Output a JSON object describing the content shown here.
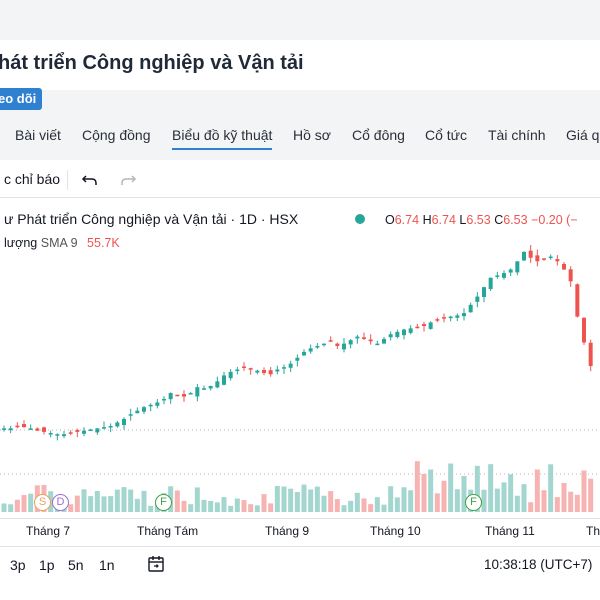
{
  "header": {
    "title": "hát triển Công nghiệp và Vận tải",
    "follow_label": "eo dõi"
  },
  "tabs": [
    {
      "label": "Bài viết"
    },
    {
      "label": "Cộng đồng"
    },
    {
      "label": "Biểu đồ kỹ thuật",
      "active": true
    },
    {
      "label": "Hồ sơ"
    },
    {
      "label": "Cổ đông"
    },
    {
      "label": "Cổ tức"
    },
    {
      "label": "Tài chính"
    },
    {
      "label": "Giá q"
    }
  ],
  "toolbar": {
    "indicators_label": "c chỉ báo",
    "icons": [
      "undo-icon",
      "redo-icon"
    ]
  },
  "legend": {
    "symbol_title": "ư Phát triển Công nghiệp và Vận tải · 1D · HSX",
    "ohlc": {
      "o_label": "O",
      "o": "6.74",
      "h_label": "H",
      "h": "6.74",
      "l_label": "L",
      "l": "6.53",
      "c_label": "C",
      "c": "6.53",
      "change": "−0.20 (−"
    },
    "volume_label": "lượng",
    "sma_label": "SMA 9",
    "volume_value": "55.7K"
  },
  "events": [
    {
      "label": "S",
      "color": "#e6a05c"
    },
    {
      "label": "D",
      "color": "#a06cd5"
    },
    {
      "label": "F",
      "color": "#43a047"
    },
    {
      "label": "F",
      "color": "#43a047"
    }
  ],
  "time_axis": {
    "months": [
      "Tháng 7",
      "Tháng Tám",
      "Tháng 9",
      "Tháng 10",
      "Tháng 11",
      "Th"
    ]
  },
  "range_buttons": [
    "3p",
    "1p",
    "5n",
    "1n"
  ],
  "clock": "10:38:18 (UTC+7)",
  "colors": {
    "up": "#26a69a",
    "down": "#ef5350",
    "up_volume": "#a3d6cf",
    "down_volume": "#f7b3b1",
    "accent": "#2f80d1"
  },
  "chart_data": {
    "type": "candlestick",
    "title": "",
    "series": [
      {
        "name": "",
        "closes": [
          6.0,
          6.0,
          6.02,
          6.01,
          6.0,
          5.98,
          5.97,
          5.96,
          5.95,
          5.95,
          5.96,
          5.97,
          5.98,
          5.99,
          6.0,
          6.01,
          6.02,
          6.05,
          6.08,
          6.12,
          6.15,
          6.18,
          6.2,
          6.22,
          6.25,
          6.3,
          6.28,
          6.27,
          6.3,
          6.35,
          6.34,
          6.36,
          6.4,
          6.45,
          6.48,
          6.5,
          6.52,
          6.5,
          6.49,
          6.47,
          6.46,
          6.5,
          6.52,
          6.55,
          6.6,
          6.65,
          6.68,
          6.7,
          6.72,
          6.74,
          6.7,
          6.72,
          6.75,
          6.78,
          6.76,
          6.74,
          6.72,
          6.76,
          6.8,
          6.82,
          6.84,
          6.85,
          6.86,
          6.87,
          6.9,
          6.92,
          6.94,
          6.95,
          6.96,
          6.98,
          7.05,
          7.12,
          7.2,
          7.28,
          7.3,
          7.32,
          7.35,
          7.42,
          7.5,
          7.45,
          7.42,
          7.44,
          7.46,
          7.42,
          7.35,
          7.25,
          6.95,
          6.73,
          6.53
        ]
      }
    ]
  }
}
